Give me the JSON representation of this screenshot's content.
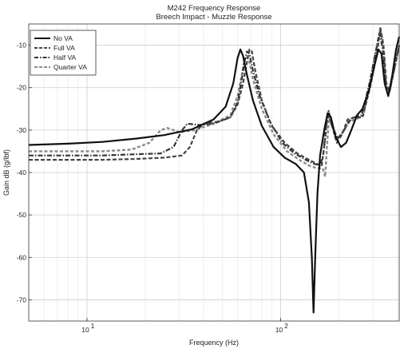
{
  "chart_data": {
    "type": "line",
    "title": "M242 Frequency Response",
    "subtitle": "Breech Impact - Muzzle Response",
    "xlabel": "Frequency (Hz)",
    "ylabel": "Gain dB (g/lbf)",
    "x_scale": "log",
    "xlim": [
      5,
      410
    ],
    "ylim": [
      -75,
      -5
    ],
    "x_ticks": [
      {
        "value": 10,
        "base": "10",
        "exp": "1"
      },
      {
        "value": 100,
        "base": "10",
        "exp": "2"
      }
    ],
    "y_ticks": [
      -70,
      -60,
      -50,
      -40,
      -30,
      -20,
      -10
    ],
    "grid": true,
    "legend_position": "top-left",
    "series": [
      {
        "name": "No VA",
        "style": "solid",
        "color": "#111111",
        "points": [
          [
            5,
            -33.5
          ],
          [
            8,
            -33.2
          ],
          [
            12,
            -32.8
          ],
          [
            18,
            -32
          ],
          [
            25,
            -31.2
          ],
          [
            35,
            -29.8
          ],
          [
            45,
            -27.5
          ],
          [
            52,
            -24.5
          ],
          [
            57,
            -19
          ],
          [
            60,
            -13
          ],
          [
            62,
            -11
          ],
          [
            64,
            -12.5
          ],
          [
            67,
            -17
          ],
          [
            72,
            -23
          ],
          [
            80,
            -29
          ],
          [
            92,
            -34
          ],
          [
            105,
            -36.5
          ],
          [
            120,
            -38
          ],
          [
            132,
            -40
          ],
          [
            140,
            -47
          ],
          [
            145,
            -60
          ],
          [
            148,
            -73
          ],
          [
            151,
            -60
          ],
          [
            155,
            -45
          ],
          [
            160,
            -36
          ],
          [
            168,
            -30
          ],
          [
            175,
            -26
          ],
          [
            182,
            -27
          ],
          [
            192,
            -31.5
          ],
          [
            205,
            -34
          ],
          [
            218,
            -33
          ],
          [
            232,
            -30
          ],
          [
            248,
            -26.5
          ],
          [
            265,
            -25
          ],
          [
            285,
            -21
          ],
          [
            305,
            -15
          ],
          [
            320,
            -11
          ],
          [
            332,
            -12
          ],
          [
            345,
            -19
          ],
          [
            360,
            -22
          ],
          [
            378,
            -17
          ],
          [
            395,
            -11
          ],
          [
            410,
            -8
          ]
        ]
      },
      {
        "name": "Full VA",
        "style": "dashed",
        "color": "#444444",
        "points": [
          [
            5,
            -37
          ],
          [
            8,
            -37
          ],
          [
            12,
            -37
          ],
          [
            18,
            -36.8
          ],
          [
            25,
            -36.5
          ],
          [
            31,
            -36
          ],
          [
            34,
            -34
          ],
          [
            37,
            -30
          ],
          [
            40,
            -28.5
          ],
          [
            48,
            -28
          ],
          [
            55,
            -27
          ],
          [
            60,
            -24
          ],
          [
            64,
            -19
          ],
          [
            67,
            -14
          ],
          [
            69,
            -11
          ],
          [
            71,
            -11.5
          ],
          [
            74,
            -16
          ],
          [
            80,
            -23
          ],
          [
            90,
            -29
          ],
          [
            105,
            -33
          ],
          [
            122,
            -35.5
          ],
          [
            140,
            -37
          ],
          [
            155,
            -38
          ],
          [
            163,
            -38.5
          ],
          [
            170,
            -32
          ],
          [
            175,
            -26
          ],
          [
            182,
            -28
          ],
          [
            195,
            -33
          ],
          [
            208,
            -31
          ],
          [
            222,
            -27.5
          ],
          [
            240,
            -27
          ],
          [
            265,
            -27
          ],
          [
            290,
            -20
          ],
          [
            315,
            -12
          ],
          [
            328,
            -6
          ],
          [
            340,
            -10
          ],
          [
            352,
            -19
          ],
          [
            365,
            -21
          ],
          [
            385,
            -16
          ],
          [
            410,
            -10
          ]
        ]
      },
      {
        "name": "Half VA",
        "style": "dashdot",
        "color": "#333333",
        "points": [
          [
            5,
            -36
          ],
          [
            8,
            -36
          ],
          [
            12,
            -36
          ],
          [
            18,
            -35.7
          ],
          [
            24,
            -35.5
          ],
          [
            28,
            -34
          ],
          [
            31,
            -30
          ],
          [
            33,
            -28.5
          ],
          [
            38,
            -28.8
          ],
          [
            45,
            -28.5
          ],
          [
            55,
            -27
          ],
          [
            60,
            -23.5
          ],
          [
            63,
            -18
          ],
          [
            65,
            -14
          ],
          [
            67,
            -11.5
          ],
          [
            69,
            -12
          ],
          [
            72,
            -16
          ],
          [
            78,
            -22
          ],
          [
            88,
            -28
          ],
          [
            102,
            -33
          ],
          [
            118,
            -35.5
          ],
          [
            135,
            -37
          ],
          [
            150,
            -38
          ],
          [
            160,
            -38.3
          ],
          [
            166,
            -36
          ],
          [
            172,
            -29
          ],
          [
            177,
            -25.5
          ],
          [
            184,
            -29
          ],
          [
            197,
            -32
          ],
          [
            210,
            -30.5
          ],
          [
            225,
            -28
          ],
          [
            240,
            -27
          ],
          [
            262,
            -26.5
          ],
          [
            288,
            -19
          ],
          [
            312,
            -11
          ],
          [
            325,
            -7
          ],
          [
            337,
            -11
          ],
          [
            350,
            -19
          ],
          [
            365,
            -21
          ],
          [
            385,
            -16
          ],
          [
            410,
            -10
          ]
        ]
      },
      {
        "name": "Quarter VA",
        "style": "dashed-gray",
        "color": "#8a8a8a",
        "points": [
          [
            5,
            -35
          ],
          [
            8,
            -35
          ],
          [
            12,
            -35
          ],
          [
            17,
            -34.6
          ],
          [
            21,
            -33
          ],
          [
            24,
            -30
          ],
          [
            26,
            -29.5
          ],
          [
            30,
            -30.5
          ],
          [
            36,
            -30
          ],
          [
            45,
            -28.5
          ],
          [
            55,
            -26.5
          ],
          [
            60,
            -22
          ],
          [
            63,
            -17
          ],
          [
            65,
            -13.5
          ],
          [
            67,
            -12.5
          ],
          [
            69,
            -14
          ],
          [
            72,
            -18
          ],
          [
            80,
            -25
          ],
          [
            92,
            -31
          ],
          [
            108,
            -35
          ],
          [
            125,
            -37
          ],
          [
            142,
            -38.5
          ],
          [
            155,
            -39
          ],
          [
            165,
            -39
          ],
          [
            170,
            -41
          ],
          [
            174,
            -33
          ],
          [
            178,
            -27
          ],
          [
            186,
            -29.5
          ],
          [
            198,
            -32
          ],
          [
            212,
            -30
          ],
          [
            228,
            -28
          ],
          [
            245,
            -27.5
          ],
          [
            268,
            -26.5
          ],
          [
            292,
            -18
          ],
          [
            315,
            -10
          ],
          [
            327,
            -6
          ],
          [
            338,
            -10
          ],
          [
            350,
            -19
          ],
          [
            365,
            -21
          ],
          [
            385,
            -16
          ],
          [
            410,
            -10
          ]
        ]
      }
    ]
  }
}
